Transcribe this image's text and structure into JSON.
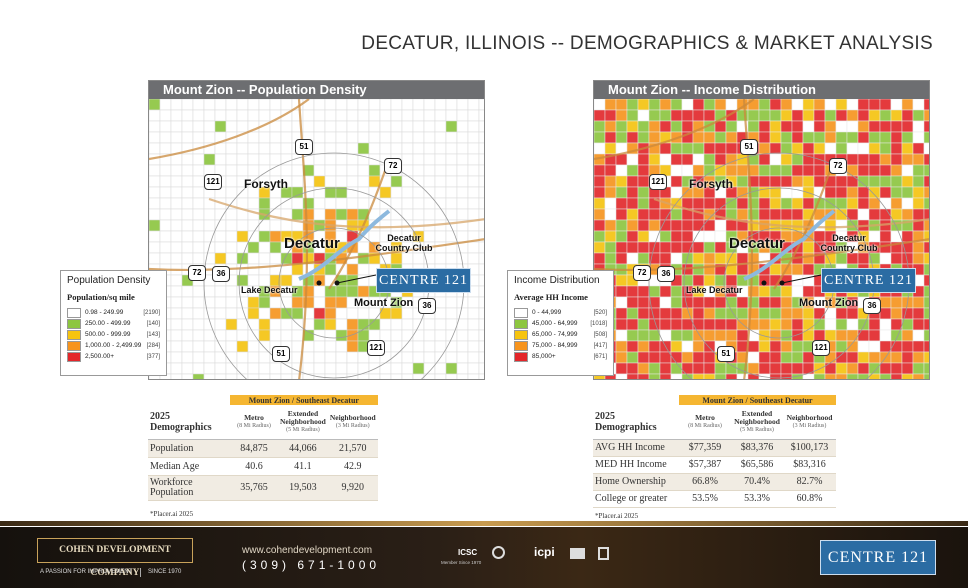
{
  "title": "DECATUR, ILLINOIS -- DEMOGRAPHICS & MARKET ANALYSIS",
  "maps": [
    {
      "header": "Mount Zion -- Population Density",
      "places": [
        "Forsyth",
        "Decatur",
        "Decatur Country Club",
        "Lake Decatur",
        "Mount Zion"
      ],
      "shields": [
        "51",
        "72",
        "121",
        "72",
        "36",
        "36",
        "51",
        "121"
      ],
      "badge": "CENTRE 121",
      "legend": {
        "title": "Population Density",
        "subtitle": "Population/sq mile",
        "items": [
          {
            "label": "0.98 - 249.99",
            "count": "[2190]",
            "color": "#ffffff"
          },
          {
            "label": "250.00 - 499.99",
            "count": "[140]",
            "color": "#8dc63f"
          },
          {
            "label": "500.00 - 999.99",
            "count": "[143]",
            "color": "#f6c40f"
          },
          {
            "label": "1,000.00 - 2,499.99",
            "count": "[284]",
            "color": "#f7941d"
          },
          {
            "label": "2,500.00+",
            "count": "[377]",
            "color": "#e3262a"
          }
        ]
      }
    },
    {
      "header": "Mount Zion -- Income Distribution",
      "places": [
        "Forsyth",
        "Decatur",
        "Decatur Country Club",
        "Lake Decatur",
        "Mount Zion"
      ],
      "shields": [
        "51",
        "72",
        "121",
        "72",
        "36",
        "36",
        "51",
        "121"
      ],
      "badge": "CENTRE 121",
      "legend": {
        "title": "Income Distribution",
        "subtitle": "Average HH Income",
        "items": [
          {
            "label": "0 - 44,999",
            "count": "[520]",
            "color": "#ffffff"
          },
          {
            "label": "45,000 - 64,999",
            "count": "[1018]",
            "color": "#8dc63f"
          },
          {
            "label": "65,000 - 74,999",
            "count": "[508]",
            "color": "#f6c40f"
          },
          {
            "label": "75,000 - 84,999",
            "count": "[417]",
            "color": "#f7941d"
          },
          {
            "label": "85,000+",
            "count": "[671]",
            "color": "#e3262a"
          }
        ]
      }
    }
  ],
  "tables": [
    {
      "group": "Mount Zion / Southeast Decatur",
      "year": "2025",
      "caption": "Demographics",
      "columns": [
        {
          "name": "Metro",
          "radius": "(8 Mi Radius)"
        },
        {
          "name": "Extended Neighborhood",
          "radius": "(5 Mi Radius)"
        },
        {
          "name": "Neighborhood",
          "radius": "(3 Mi Radius)"
        }
      ],
      "rows": [
        [
          "Population",
          "84,875",
          "44,066",
          "21,570"
        ],
        [
          "Median Age",
          "40.6",
          "41.1",
          "42.9"
        ],
        [
          "Workforce Population",
          "35,765",
          "19,503",
          "9,920"
        ]
      ],
      "note": "*Placer.ai 2025"
    },
    {
      "group": "Mount Zion / Southeast Decatur",
      "year": "2025",
      "caption": "Demographics",
      "columns": [
        {
          "name": "Metro",
          "radius": "(8 Mi Radius)"
        },
        {
          "name": "Extended Neighborhood",
          "radius": "(5 Mi Radius)"
        },
        {
          "name": "Neighborhood",
          "radius": "(3 Mi Radius)"
        }
      ],
      "rows": [
        [
          "AVG HH Income",
          "$77,359",
          "$83,376",
          "$100,173"
        ],
        [
          "MED HH Income",
          "$57,387",
          "$65,586",
          "$83,316"
        ],
        [
          "Home Ownership",
          "66.8%",
          "70.4%",
          "82.7%"
        ],
        [
          "College or greater",
          "53.5%",
          "53.3%",
          "60.8%"
        ]
      ],
      "note": "*Placer.ai 2025"
    }
  ],
  "footer": {
    "company": "COHEN DEVELOPMENT COMPANY",
    "tagline": "A PASSION FOR IMPROVEMENT",
    "since": "SINCE 1970",
    "website": "www.cohendevelopment.com",
    "phone": "(309) 671-1000",
    "icsc": "ICSC",
    "icsc_member": "Member Since 1970",
    "icpi": "icpi",
    "badge": "CENTRE 121"
  }
}
